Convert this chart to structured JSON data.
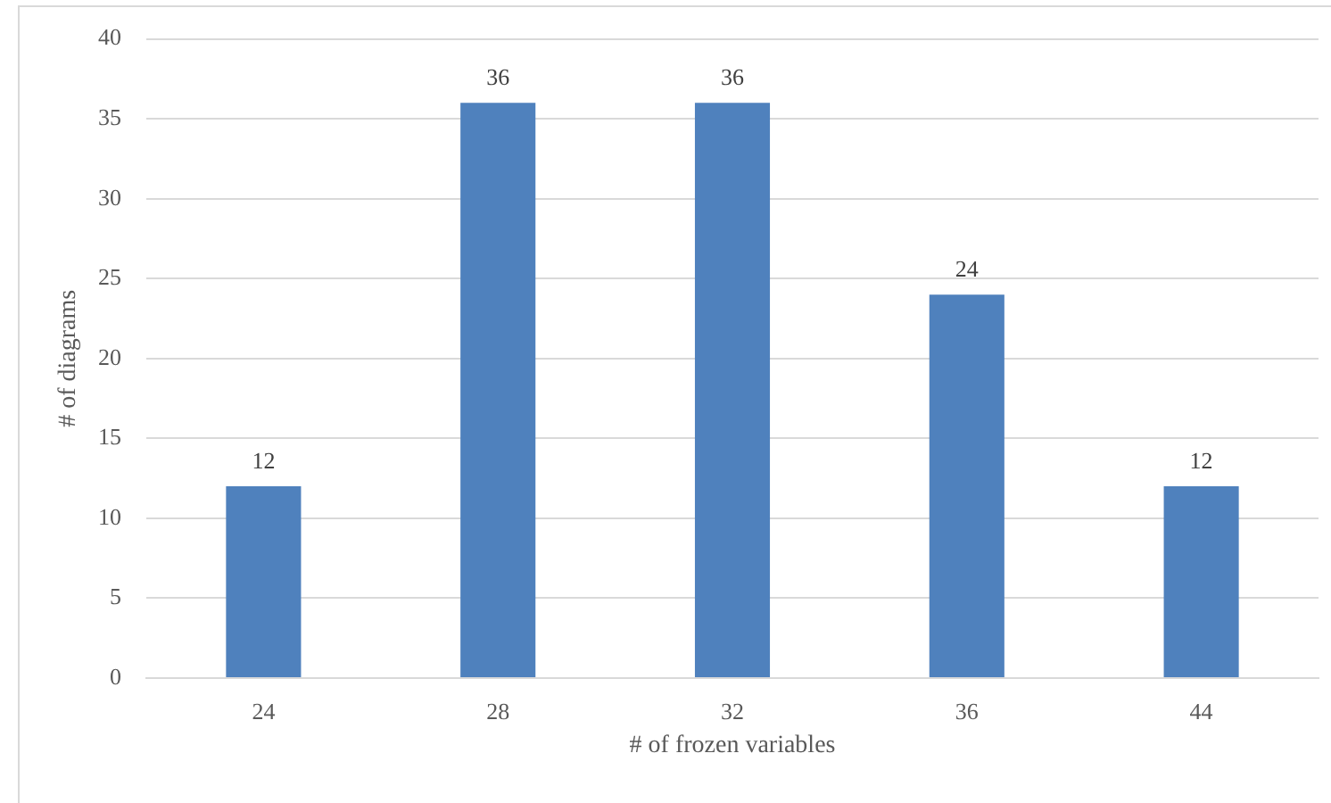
{
  "chart_data": {
    "type": "bar",
    "xlabel": "# of frozen variables",
    "ylabel": "# of diagrams",
    "categories": [
      "24",
      "28",
      "32",
      "36",
      "44"
    ],
    "values": [
      12,
      36,
      36,
      24,
      12
    ],
    "color": "#4f81bd",
    "ylim": [
      0,
      40
    ],
    "yticks": [
      0,
      5,
      10,
      15,
      20,
      25,
      30,
      35,
      40
    ],
    "grid": "y",
    "data_labels": true
  }
}
